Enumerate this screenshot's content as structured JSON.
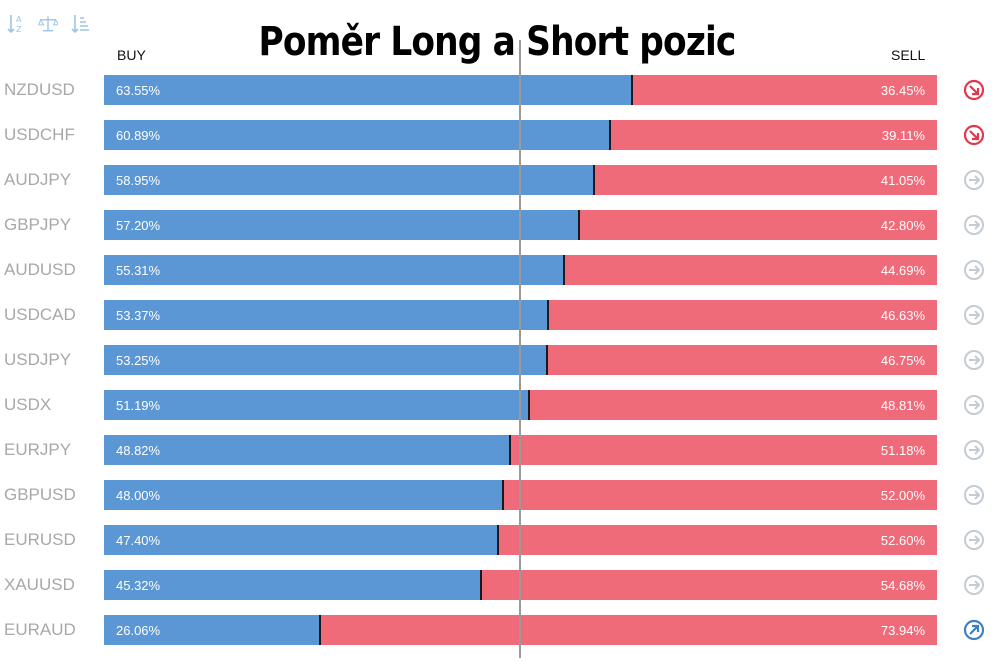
{
  "title": "Poměr Long a Short pozic",
  "columns": {
    "buy": "BUY",
    "sell": "SELL"
  },
  "toolbar": [
    {
      "icon": "sort-alpha-icon"
    },
    {
      "icon": "balance-scale-icon"
    },
    {
      "icon": "sort-numeric-icon"
    }
  ],
  "colors": {
    "buy": "#5b96d5",
    "sell": "#f06b7a",
    "down": "#e0384e",
    "neutral": "#c4cbd3",
    "up": "#3e7fc4"
  },
  "chart_data": {
    "type": "bar",
    "stacked": true,
    "orientation": "horizontal",
    "title": "Poměr Long a Short pozic",
    "categories": [
      "NZDUSD",
      "USDCHF",
      "AUDJPY",
      "GBPJPY",
      "AUDUSD",
      "USDCAD",
      "USDJPY",
      "USDX",
      "EURJPY",
      "GBPUSD",
      "EURUSD",
      "XAUUSD",
      "EURAUD"
    ],
    "series": [
      {
        "name": "BUY",
        "values": [
          63.55,
          60.89,
          58.95,
          57.2,
          55.31,
          53.37,
          53.25,
          51.19,
          48.82,
          48.0,
          47.4,
          45.32,
          26.06
        ]
      },
      {
        "name": "SELL",
        "values": [
          36.45,
          39.11,
          41.05,
          42.8,
          44.69,
          46.63,
          46.75,
          48.81,
          51.18,
          52.0,
          52.6,
          54.68,
          73.94
        ]
      }
    ],
    "buy_labels": [
      "63.55%",
      "60.89%",
      "58.95%",
      "57.20%",
      "55.31%",
      "53.37%",
      "53.25%",
      "51.19%",
      "48.82%",
      "48.00%",
      "47.40%",
      "45.32%",
      "26.06%"
    ],
    "sell_labels": [
      "36.45%",
      "39.11%",
      "41.05%",
      "42.80%",
      "44.69%",
      "46.63%",
      "46.75%",
      "48.81%",
      "51.18%",
      "52.00%",
      "52.60%",
      "54.68%",
      "73.94%"
    ],
    "trend_icons": [
      "down",
      "down",
      "neutral",
      "neutral",
      "neutral",
      "neutral",
      "neutral",
      "neutral",
      "neutral",
      "neutral",
      "neutral",
      "neutral",
      "up"
    ],
    "xlim": [
      0,
      100
    ]
  }
}
